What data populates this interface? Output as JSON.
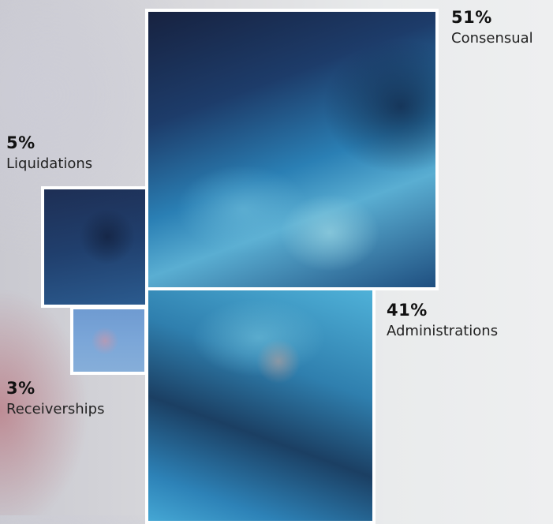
{
  "chart_data": {
    "type": "treemap",
    "title": "",
    "items": [
      {
        "key": "consensual",
        "value": 51,
        "value_label": "51%",
        "category": "Consensual"
      },
      {
        "key": "administrations",
        "value": 41,
        "value_label": "41%",
        "category": "Administrations"
      },
      {
        "key": "liquidations",
        "value": 5,
        "value_label": "5%",
        "category": "Liquidations"
      },
      {
        "key": "receiverships",
        "value": 3,
        "value_label": "3%",
        "category": "Receiverships"
      }
    ]
  }
}
